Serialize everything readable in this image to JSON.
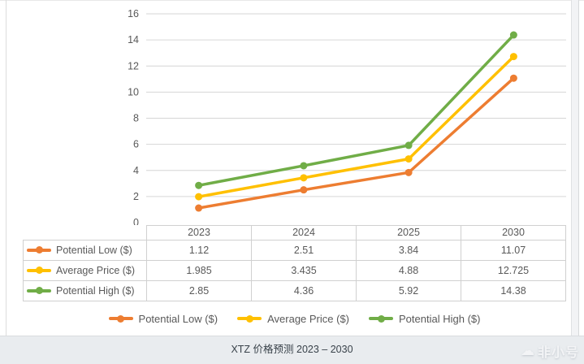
{
  "chart_data": {
    "type": "line",
    "categories": [
      "2023",
      "2024",
      "2025",
      "2030"
    ],
    "series": [
      {
        "name": "Potential Low ($)",
        "values": [
          1.12,
          2.51,
          3.84,
          11.07
        ],
        "color": "#ED7D31"
      },
      {
        "name": "Average Price ($)",
        "values": [
          1.985,
          3.435,
          4.88,
          12.725
        ],
        "color": "#FFC000"
      },
      {
        "name": "Potential High ($)",
        "values": [
          2.85,
          4.36,
          5.92,
          14.38
        ],
        "color": "#70AD47"
      }
    ],
    "ylim": [
      0,
      16
    ],
    "yticks": [
      0,
      2,
      4,
      6,
      8,
      10,
      12,
      14,
      16
    ],
    "grid": true,
    "legend_position": "bottom",
    "data_table": true,
    "gridline_color": "#d6d6d6",
    "axis_text_color": "#595959"
  },
  "caption": {
    "title": "XTZ 价格预测 2023 – 2030"
  },
  "watermark": {
    "text": "非小号",
    "icon": "cloud"
  }
}
